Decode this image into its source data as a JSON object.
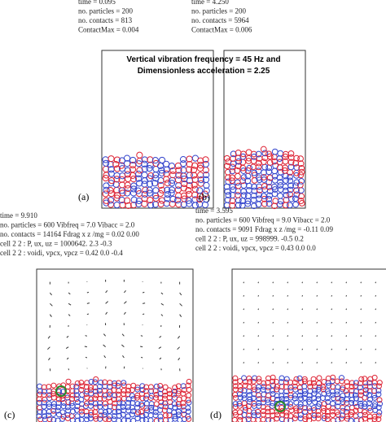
{
  "panels": [
    {
      "label": "(a)",
      "info": [
        "time = 0.095",
        "no. particles = 200",
        "no. contacts = 813",
        "ContactMax = 0.004"
      ]
    },
    {
      "label": "(b)",
      "info": [
        "time = 4.250",
        "no. particles = 200",
        "no. contacts = 5964",
        "ContactMax = 0.006"
      ]
    },
    {
      "label": "(c)",
      "info": [
        "time = 9.910",
        "no. particles = 600  Vibfreq = 7.0 Vibacc = 2.0",
        "no. contacts = 14164   Fdrag x z /mg = 0.02 0.00",
        "cell 2 2 : P, ux, uz = 1000642. 2.3 -0.3",
        "cell 2 2 : voidi, vpcx, vpcz = 0.42 0.0 -0.4"
      ]
    },
    {
      "label": "(d)",
      "info": [
        "time = 3.595",
        "no. particles = 600  Vibfreq = 9.0 Vibacc = 2.0",
        "no. contacts = 9091   Fdrag x z /mg = -0.11 0.09",
        "cell 2 2 : P, ux, uz = 998999. -0.5 0.2",
        "cell 2 2 : voidi, vpcx, vpcz = 0.43 0.0 0.0"
      ]
    }
  ],
  "overlay": [
    "Vertical vibration frequency = 45 Hz and",
    "Dimensionless acceleration = 2.25"
  ]
}
